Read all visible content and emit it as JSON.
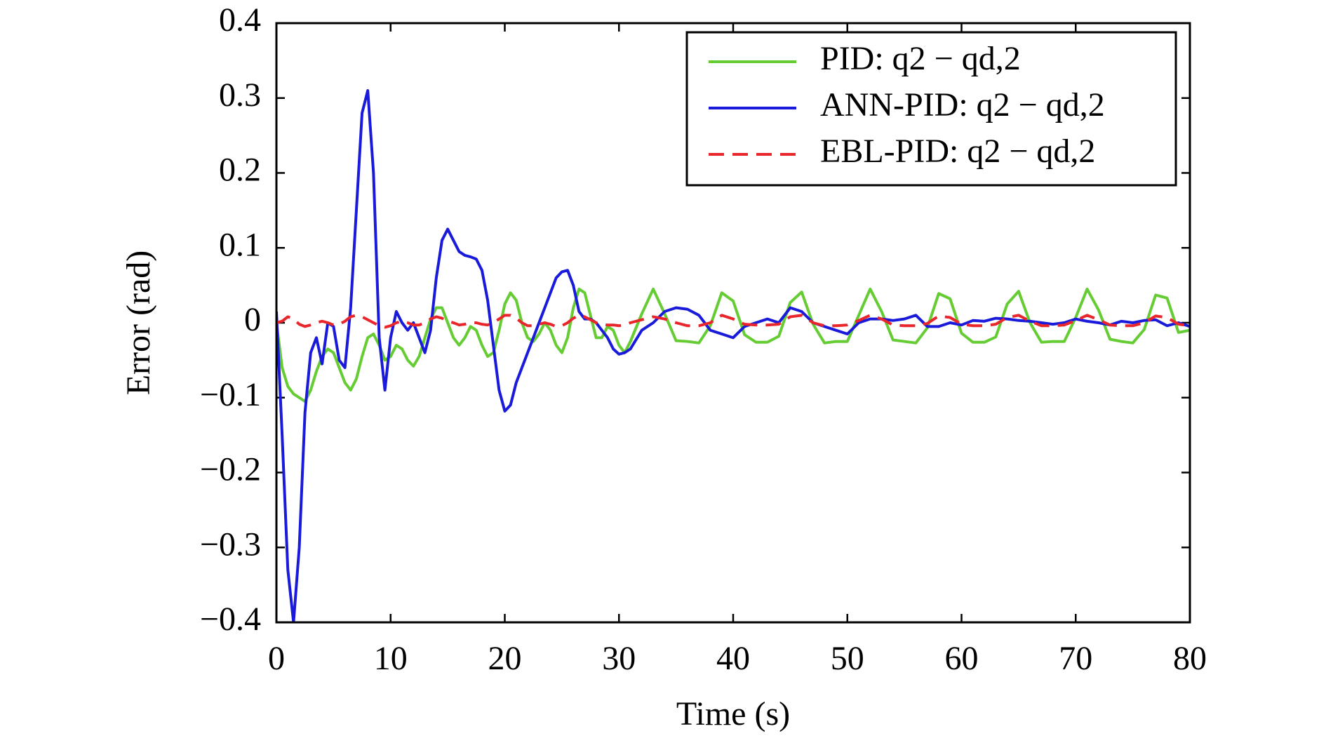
{
  "chart_data": {
    "type": "line",
    "xlabel": "Time (s)",
    "ylabel": "Error (rad)",
    "x": [
      0,
      0.5,
      1,
      1.5,
      2,
      2.5,
      3,
      3.5,
      4,
      4.5,
      5,
      5.5,
      6,
      6.5,
      7,
      7.5,
      8,
      8.5,
      9,
      9.5,
      10,
      10.5,
      11,
      11.5,
      12,
      12.5,
      13,
      13.5,
      14,
      14.5,
      15,
      15.5,
      16,
      16.5,
      17,
      17.5,
      18,
      18.5,
      19,
      19.5,
      20,
      20.5,
      21,
      21.5,
      22,
      22.5,
      23,
      23.5,
      24,
      24.5,
      25,
      25.5,
      26,
      26.5,
      27,
      27.5,
      28,
      28.5,
      29,
      29.5,
      30,
      30.5,
      31,
      32,
      33,
      34,
      35,
      36,
      37,
      38,
      39,
      40,
      41,
      42,
      43,
      44,
      45,
      46,
      47,
      48,
      49,
      50,
      51,
      52,
      53,
      54,
      55,
      56,
      57,
      58,
      59,
      60,
      61,
      62,
      63,
      64,
      65,
      66,
      67,
      68,
      69,
      70,
      71,
      72,
      73,
      74,
      75,
      76,
      77,
      78,
      79,
      80
    ],
    "series": [
      {
        "name": "PID: q2 − qd,2",
        "color": "#66cc33",
        "dash": false,
        "values": [
          0,
          -0.06,
          -0.085,
          -0.095,
          -0.1,
          -0.105,
          -0.09,
          -0.065,
          -0.045,
          -0.035,
          -0.04,
          -0.06,
          -0.08,
          -0.09,
          -0.075,
          -0.045,
          -0.02,
          -0.015,
          -0.03,
          -0.05,
          -0.045,
          -0.03,
          -0.035,
          -0.05,
          -0.058,
          -0.045,
          -0.02,
          0.005,
          0.02,
          0.02,
          0,
          -0.02,
          -0.03,
          -0.02,
          -0.005,
          -0.01,
          -0.03,
          -0.045,
          -0.04,
          -0.01,
          0.025,
          0.04,
          0.03,
          0,
          -0.02,
          -0.025,
          -0.015,
          0,
          -0.01,
          -0.03,
          -0.04,
          -0.02,
          0.02,
          0.045,
          0.04,
          0.01,
          -0.02,
          -0.02,
          -0.005,
          -0.01,
          -0.03,
          -0.04,
          -0.025,
          0.012,
          0.045,
          0.012,
          -0.024,
          -0.025,
          -0.027,
          -0.004,
          0.04,
          0.029,
          -0.016,
          -0.026,
          -0.026,
          -0.018,
          0.027,
          0.041,
          -0.002,
          -0.027,
          -0.025,
          -0.025,
          0.01,
          0.045,
          0.015,
          -0.023,
          -0.025,
          -0.027,
          -0.007,
          0.039,
          0.032,
          -0.014,
          -0.026,
          -0.026,
          -0.019,
          0.025,
          0.042,
          0,
          -0.026,
          -0.025,
          -0.025,
          0.007,
          0.045,
          0.017,
          -0.022,
          -0.025,
          -0.027,
          -0.009,
          0.037,
          0.033,
          -0.013,
          -0.01
        ]
      },
      {
        "name": "ANN-PID: q2 − qd,2",
        "color": "#1a1adb",
        "dash": false,
        "values": [
          0.015,
          -0.15,
          -0.33,
          -0.4,
          -0.3,
          -0.12,
          -0.04,
          -0.02,
          -0.055,
          0,
          -0.005,
          -0.05,
          -0.06,
          0.02,
          0.15,
          0.28,
          0.31,
          0.2,
          -0.02,
          -0.09,
          -0.02,
          0.015,
          0,
          -0.01,
          0,
          -0.02,
          -0.04,
          -0.01,
          0.06,
          0.11,
          0.125,
          0.11,
          0.095,
          0.09,
          0.088,
          0.085,
          0.07,
          0.03,
          -0.03,
          -0.09,
          -0.118,
          -0.11,
          -0.08,
          -0.06,
          -0.04,
          -0.02,
          0,
          0.02,
          0.04,
          0.06,
          0.068,
          0.07,
          0.05,
          0.015,
          0.005,
          0.005,
          0,
          -0.01,
          -0.02,
          -0.035,
          -0.042,
          -0.04,
          -0.035,
          -0.01,
          0,
          0.015,
          0.02,
          0.018,
          0.01,
          -0.01,
          -0.015,
          -0.02,
          -0.005,
          0,
          0.005,
          0,
          0.02,
          0.015,
          0,
          -0.005,
          -0.01,
          -0.015,
          0,
          0.005,
          0.005,
          0.003,
          0.005,
          0.01,
          -0.005,
          -0.005,
          0,
          -0.003,
          0.003,
          0.002,
          0.006,
          0.005,
          0.003,
          0.002,
          0,
          -0.002,
          0,
          0.005,
          0.002,
          0,
          -0.003,
          0.002,
          0,
          0.003,
          0.004,
          -0.004,
          0,
          -0.005
        ]
      },
      {
        "name": "EBL-PID: q2 − qd,2",
        "color": "#e8262b",
        "dash": true,
        "values": [
          0,
          0.002,
          0.008,
          0.005,
          -0.002,
          -0.005,
          -0.003,
          0,
          0.002,
          0,
          -0.003,
          -0.002,
          0.002,
          0.008,
          0.01,
          0.008,
          0.004,
          0,
          -0.004,
          -0.006,
          -0.004,
          0,
          0.002,
          0,
          -0.003,
          -0.003,
          0,
          0.005,
          0.008,
          0.006,
          0.002,
          0,
          -0.003,
          -0.002,
          0,
          0,
          -0.002,
          -0.003,
          0,
          0.005,
          0.01,
          0.01,
          0.006,
          0,
          -0.004,
          -0.004,
          -0.002,
          0,
          -0.002,
          -0.005,
          -0.004,
          0,
          0.006,
          0.01,
          0.008,
          0.004,
          0,
          -0.002,
          -0.003,
          -0.003,
          -0.004,
          -0.003,
          0,
          0.004,
          0.008,
          0.005,
          0,
          -0.004,
          -0.004,
          0,
          0.01,
          0.005,
          -0.002,
          -0.003,
          -0.003,
          -0.002,
          0.008,
          0.01,
          0,
          -0.004,
          -0.004,
          -0.003,
          0.003,
          0.01,
          0.005,
          -0.003,
          -0.004,
          -0.004,
          -0.001,
          0.009,
          0.007,
          -0.002,
          -0.004,
          -0.004,
          -0.002,
          0.007,
          0.01,
          0.002,
          -0.004,
          -0.004,
          -0.003,
          0.003,
          0.01,
          0.004,
          -0.003,
          -0.004,
          -0.004,
          0,
          0.009,
          0.007,
          -0.002,
          -0.004
        ]
      }
    ],
    "xlim": [
      0,
      80
    ],
    "xticks": [
      0,
      10,
      20,
      30,
      40,
      50,
      60,
      70,
      80
    ],
    "ylim": [
      -0.4,
      0.4
    ],
    "yticks": [
      {
        "value": -0.4,
        "label": "−0.4"
      },
      {
        "value": -0.3,
        "label": "−0.3"
      },
      {
        "value": -0.2,
        "label": "−0.2"
      },
      {
        "value": -0.1,
        "label": "−0.1"
      },
      0,
      0.1,
      0.2,
      0.3,
      0.4
    ],
    "grid": false,
    "legend": "upper right"
  }
}
